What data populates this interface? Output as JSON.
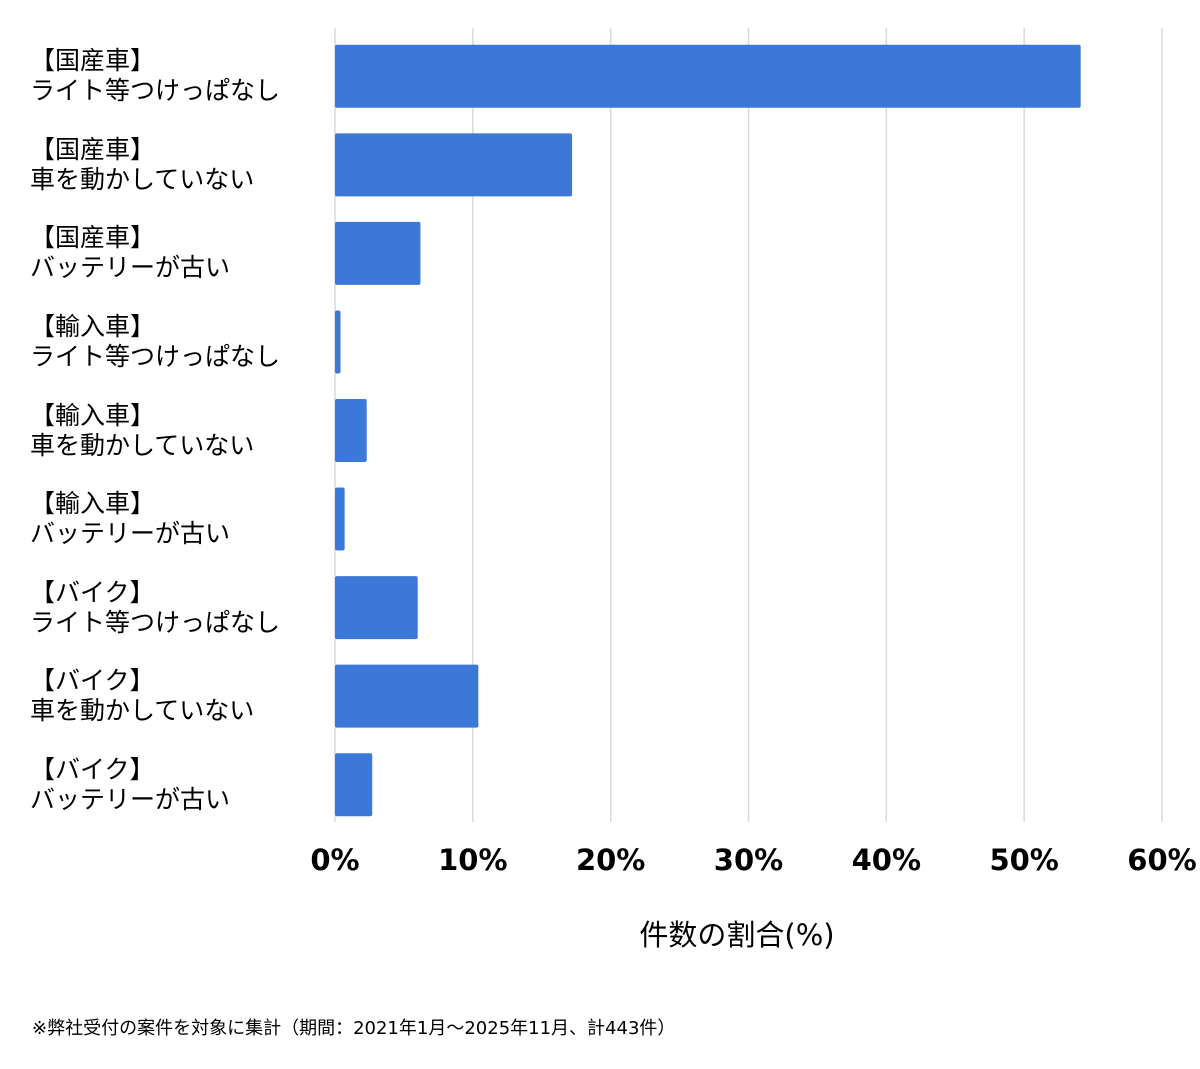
{
  "chart_data": {
    "type": "bar",
    "orientation": "horizontal",
    "categories": [
      "【国産車】\nライト等つけっぱなし",
      "【国産車】\n車を動かしていない",
      "【国産車】\nバッテリーが古い",
      "【輸入車】\nライト等つけっぱなし",
      "【輸入車】\n車を動かしていない",
      "【輸入車】\nバッテリーが古い",
      "【バイク】\nライト等つけっぱなし",
      "【バイク】\n車を動かしていない",
      "【バイク】\nバッテリーが古い"
    ],
    "values": [
      54.1,
      17.2,
      6.2,
      0.4,
      2.3,
      0.7,
      6.0,
      10.4,
      2.7
    ],
    "color": "#3c78d8",
    "xlim": [
      0,
      60
    ],
    "xticks": [
      {
        "value": 0,
        "label": "0%"
      },
      {
        "value": 10,
        "label": "10%"
      },
      {
        "value": 20,
        "label": "20%"
      },
      {
        "value": 30,
        "label": "30%"
      },
      {
        "value": 40,
        "label": "40%"
      },
      {
        "value": 50,
        "label": "50%"
      },
      {
        "value": 60,
        "label": "60%"
      }
    ],
    "grid": true,
    "xlabel": "件数の割合(%)",
    "note": "※弊社受付の案件を対象に集計（期間：2021年1月〜2025年11月、計443件）"
  }
}
